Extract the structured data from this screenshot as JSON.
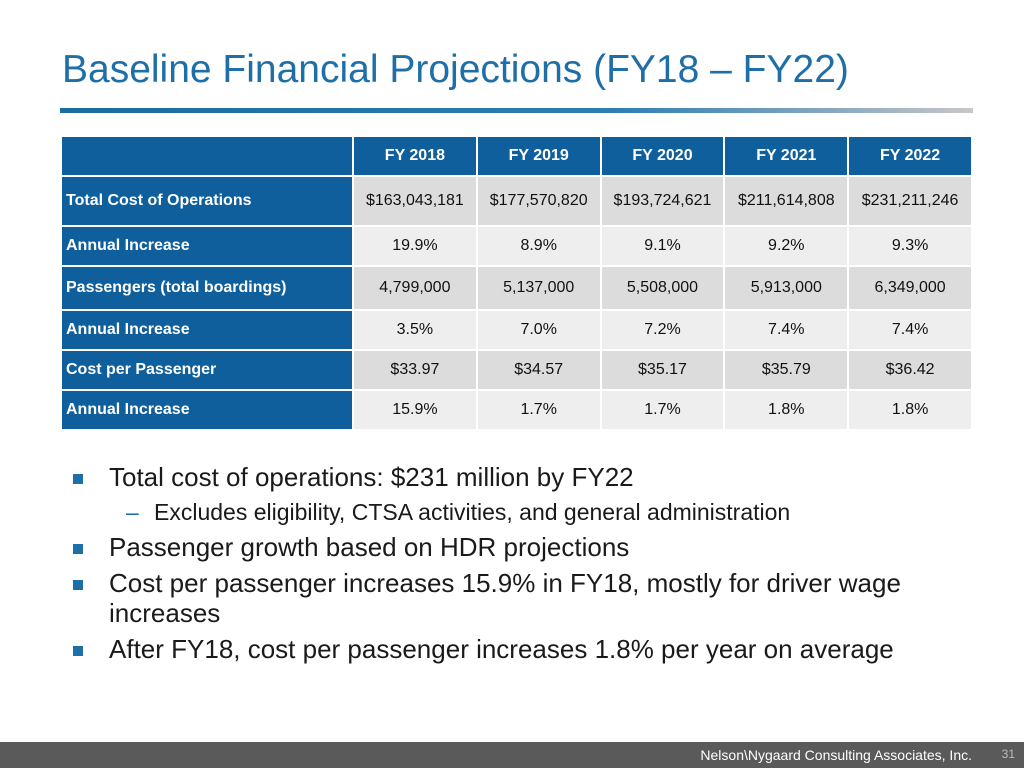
{
  "title": "Baseline Financial Projections (FY18 – FY22)",
  "table": {
    "columns": [
      "FY 2018",
      "FY 2019",
      "FY 2020",
      "FY 2021",
      "FY 2022"
    ],
    "rows": [
      {
        "label": "Total Cost of Operations",
        "values": [
          "$163,043,181",
          "$177,570,820",
          "$193,724,621",
          "$211,614,808",
          "$231,211,246"
        ]
      },
      {
        "label": "Annual Increase",
        "values": [
          "19.9%",
          "8.9%",
          "9.1%",
          "9.2%",
          "9.3%"
        ]
      },
      {
        "label": "Passengers (total boardings)",
        "values": [
          "4,799,000",
          "5,137,000",
          "5,508,000",
          "5,913,000",
          "6,349,000"
        ]
      },
      {
        "label": "Annual Increase",
        "values": [
          "3.5%",
          "7.0%",
          "7.2%",
          "7.4%",
          "7.4%"
        ]
      },
      {
        "label": "Cost per Passenger",
        "values": [
          "$33.97",
          "$34.57",
          "$35.17",
          "$35.79",
          "$36.42"
        ]
      },
      {
        "label": "Annual Increase",
        "values": [
          "15.9%",
          "1.7%",
          "1.7%",
          "1.8%",
          "1.8%"
        ]
      }
    ]
  },
  "bullets": [
    {
      "text": "Total cost of operations: $231 million by FY22",
      "sub": [
        "Excludes eligibility, CTSA activities, and general administration"
      ]
    },
    {
      "text": "Passenger growth based on HDR projections",
      "sub": []
    },
    {
      "text": "Cost per passenger increases 15.9% in FY18, mostly for driver wage increases",
      "sub": []
    },
    {
      "text": "After FY18, cost per passenger increases 1.8% per year on average",
      "sub": []
    }
  ],
  "footer": {
    "company": "Nelson\\Nygaard Consulting Associates, Inc.",
    "page": "31"
  },
  "colors": {
    "accent": "#1e6fa8",
    "header_fill": "#0f5f9c",
    "footer_fill": "#5a5a5a"
  }
}
